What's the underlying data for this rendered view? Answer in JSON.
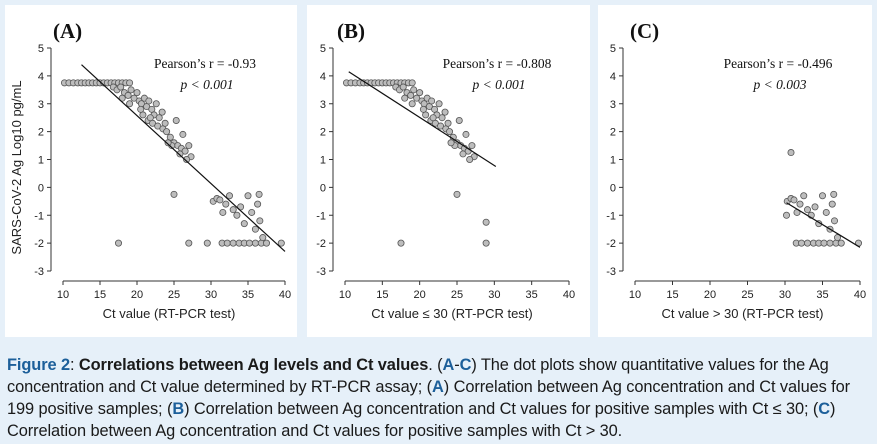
{
  "caption": {
    "figure_label": "Figure 2",
    "title": "Correlations between Ag levels and Ct values",
    "text_1": ". (",
    "range_a": "A",
    "range_dash": "-",
    "range_c": "C",
    "text_2": ") The dot plots show quantitative values for the Ag concentration and Ct value determined by RT-PCR assay; (",
    "label_a": "A",
    "text_3": ") Correlation between Ag concentration and Ct values for 199 positive samples; (",
    "label_b": "B",
    "text_4": ") Correlation between Ag concentration and Ct values for positive samples with Ct ≤ 30; (",
    "label_c": "C",
    "text_5": ") Correlation between Ag concentration and Ct values for positive samples with Ct > 30."
  },
  "chart_data": [
    {
      "type": "scatter",
      "panel_label": "(A)",
      "xlabel": "Ct value (RT-PCR test)",
      "ylabel": "SARS-CoV-2 Ag Log10 pg/mL",
      "xlim": [
        10,
        40
      ],
      "ylim": [
        -3,
        5
      ],
      "xticks": [
        10,
        15,
        20,
        25,
        30,
        35,
        40
      ],
      "yticks": [
        -3,
        -2,
        -1,
        0,
        1,
        2,
        3,
        4,
        5
      ],
      "stat_line1": "Pearson’s r = -0.93",
      "stat_line2": "p < 0.001",
      "trend": {
        "x": [
          12.5,
          40
        ],
        "y": [
          4.4,
          -2.3
        ]
      },
      "points": [
        [
          10.2,
          3.75
        ],
        [
          10.8,
          3.75
        ],
        [
          11.4,
          3.75
        ],
        [
          12.0,
          3.75
        ],
        [
          12.5,
          3.75
        ],
        [
          13.0,
          3.75
        ],
        [
          13.5,
          3.75
        ],
        [
          14.0,
          3.75
        ],
        [
          14.5,
          3.75
        ],
        [
          15.0,
          3.75
        ],
        [
          15.5,
          3.75
        ],
        [
          16.0,
          3.75
        ],
        [
          16.5,
          3.75
        ],
        [
          17.0,
          3.75
        ],
        [
          17.5,
          3.75
        ],
        [
          18.0,
          3.75
        ],
        [
          18.5,
          3.75
        ],
        [
          19.0,
          3.75
        ],
        [
          16.8,
          3.6
        ],
        [
          17.3,
          3.5
        ],
        [
          17.8,
          3.6
        ],
        [
          18.3,
          3.4
        ],
        [
          18.8,
          3.3
        ],
        [
          19.2,
          3.5
        ],
        [
          19.6,
          3.2
        ],
        [
          20.0,
          3.4
        ],
        [
          20.3,
          3.1
        ],
        [
          20.6,
          3.0
        ],
        [
          21.0,
          3.2
        ],
        [
          21.3,
          2.9
        ],
        [
          21.6,
          3.1
        ],
        [
          22.0,
          2.8
        ],
        [
          22.3,
          2.6
        ],
        [
          22.6,
          3.0
        ],
        [
          23.0,
          2.5
        ],
        [
          23.4,
          2.7
        ],
        [
          20.8,
          2.6
        ],
        [
          21.5,
          2.4
        ],
        [
          22.1,
          2.3
        ],
        [
          22.8,
          2.2
        ],
        [
          23.5,
          2.1
        ],
        [
          24.0,
          2.0
        ],
        [
          24.5,
          1.8
        ],
        [
          25.0,
          1.6
        ],
        [
          25.5,
          1.5
        ],
        [
          26.0,
          1.4
        ],
        [
          26.5,
          1.3
        ],
        [
          27.0,
          1.5
        ],
        [
          25.3,
          2.4
        ],
        [
          26.2,
          1.9
        ],
        [
          27.3,
          1.1
        ],
        [
          18.0,
          3.2
        ],
        [
          19.0,
          3.0
        ],
        [
          20.5,
          2.8
        ],
        [
          21.8,
          2.5
        ],
        [
          23.8,
          2.3
        ],
        [
          24.7,
          1.5
        ],
        [
          26.7,
          1.0
        ],
        [
          24.2,
          1.6
        ],
        [
          25.8,
          1.2
        ],
        [
          17.5,
          -2.0
        ],
        [
          25.0,
          -0.25
        ],
        [
          27.0,
          -2.0
        ],
        [
          29.5,
          -2.0
        ],
        [
          30.3,
          -0.5
        ],
        [
          30.8,
          -0.4
        ],
        [
          31.2,
          -0.45
        ],
        [
          31.6,
          -0.9
        ],
        [
          32.0,
          -0.6
        ],
        [
          32.5,
          -0.3
        ],
        [
          33.0,
          -0.8
        ],
        [
          33.5,
          -1.0
        ],
        [
          34.0,
          -0.7
        ],
        [
          34.5,
          -1.3
        ],
        [
          35.0,
          -0.3
        ],
        [
          35.5,
          -0.9
        ],
        [
          36.0,
          -1.5
        ],
        [
          36.3,
          -0.6
        ],
        [
          36.6,
          -1.2
        ],
        [
          31.5,
          -2.0
        ],
        [
          32.2,
          -2.0
        ],
        [
          33.0,
          -2.0
        ],
        [
          33.8,
          -2.0
        ],
        [
          34.5,
          -2.0
        ],
        [
          35.2,
          -2.0
        ],
        [
          36.0,
          -2.0
        ],
        [
          36.8,
          -2.0
        ],
        [
          37.5,
          -2.0
        ],
        [
          39.5,
          -2.0
        ],
        [
          36.5,
          -0.25
        ],
        [
          37.0,
          -1.8
        ]
      ]
    },
    {
      "type": "scatter",
      "panel_label": "(B)",
      "xlabel": "Ct value ≤ 30 (RT-PCR test)",
      "ylabel": "",
      "xlim": [
        10,
        40
      ],
      "ylim": [
        -3,
        5
      ],
      "xticks": [
        10,
        15,
        20,
        25,
        30,
        35,
        40
      ],
      "yticks": [
        -3,
        -2,
        -1,
        0,
        1,
        2,
        3,
        4,
        5
      ],
      "stat_line1": "Pearson’s r = -0.808",
      "stat_line2": "p < 0.001",
      "trend": {
        "x": [
          10.5,
          30.2
        ],
        "y": [
          4.15,
          0.75
        ]
      },
      "points": [
        [
          10.2,
          3.75
        ],
        [
          10.8,
          3.75
        ],
        [
          11.4,
          3.75
        ],
        [
          12.0,
          3.75
        ],
        [
          12.5,
          3.75
        ],
        [
          13.0,
          3.75
        ],
        [
          13.5,
          3.75
        ],
        [
          14.0,
          3.75
        ],
        [
          14.5,
          3.75
        ],
        [
          15.0,
          3.75
        ],
        [
          15.5,
          3.75
        ],
        [
          16.0,
          3.75
        ],
        [
          16.5,
          3.75
        ],
        [
          17.0,
          3.75
        ],
        [
          17.5,
          3.75
        ],
        [
          18.0,
          3.75
        ],
        [
          18.5,
          3.75
        ],
        [
          19.0,
          3.75
        ],
        [
          16.8,
          3.6
        ],
        [
          17.3,
          3.5
        ],
        [
          17.8,
          3.6
        ],
        [
          18.3,
          3.4
        ],
        [
          18.8,
          3.3
        ],
        [
          19.2,
          3.5
        ],
        [
          19.6,
          3.2
        ],
        [
          20.0,
          3.4
        ],
        [
          20.3,
          3.1
        ],
        [
          20.6,
          3.0
        ],
        [
          21.0,
          3.2
        ],
        [
          21.3,
          2.9
        ],
        [
          21.6,
          3.1
        ],
        [
          22.0,
          2.8
        ],
        [
          22.3,
          2.6
        ],
        [
          22.6,
          3.0
        ],
        [
          23.0,
          2.5
        ],
        [
          23.4,
          2.7
        ],
        [
          20.8,
          2.6
        ],
        [
          21.5,
          2.4
        ],
        [
          22.1,
          2.3
        ],
        [
          22.8,
          2.2
        ],
        [
          23.5,
          2.1
        ],
        [
          24.0,
          2.0
        ],
        [
          24.5,
          1.8
        ],
        [
          25.0,
          1.6
        ],
        [
          25.5,
          1.5
        ],
        [
          26.0,
          1.4
        ],
        [
          26.5,
          1.3
        ],
        [
          27.0,
          1.5
        ],
        [
          25.3,
          2.4
        ],
        [
          26.2,
          1.9
        ],
        [
          27.3,
          1.1
        ],
        [
          18.0,
          3.2
        ],
        [
          19.0,
          3.0
        ],
        [
          20.5,
          2.8
        ],
        [
          21.8,
          2.5
        ],
        [
          23.8,
          2.3
        ],
        [
          24.7,
          1.5
        ],
        [
          26.7,
          1.0
        ],
        [
          24.2,
          1.6
        ],
        [
          25.8,
          1.2
        ],
        [
          17.5,
          -2.0
        ],
        [
          25.0,
          -0.25
        ],
        [
          28.9,
          -1.25
        ],
        [
          28.9,
          -2.0
        ]
      ]
    },
    {
      "type": "scatter",
      "panel_label": "(C)",
      "xlabel": "Ct value > 30 (RT-PCR test)",
      "ylabel": "",
      "xlim": [
        10,
        40
      ],
      "ylim": [
        -3,
        5
      ],
      "xticks": [
        10,
        15,
        20,
        25,
        30,
        35,
        40
      ],
      "yticks": [
        -3,
        -2,
        -1,
        0,
        1,
        2,
        3,
        4,
        5
      ],
      "stat_line1": "Pearson’s r = -0.496",
      "stat_line2": "p < 0.003",
      "trend": {
        "x": [
          30.2,
          40
        ],
        "y": [
          -0.55,
          -2.15
        ]
      },
      "points": [
        [
          30.8,
          1.25
        ],
        [
          30.3,
          -0.5
        ],
        [
          30.8,
          -0.4
        ],
        [
          31.2,
          -0.45
        ],
        [
          31.6,
          -0.9
        ],
        [
          32.0,
          -0.6
        ],
        [
          32.5,
          -0.3
        ],
        [
          33.0,
          -0.8
        ],
        [
          33.5,
          -1.0
        ],
        [
          34.0,
          -0.7
        ],
        [
          34.5,
          -1.3
        ],
        [
          35.0,
          -0.3
        ],
        [
          35.5,
          -0.9
        ],
        [
          36.0,
          -1.5
        ],
        [
          36.3,
          -0.6
        ],
        [
          36.6,
          -1.2
        ],
        [
          30.2,
          -1.0
        ],
        [
          31.5,
          -2.0
        ],
        [
          32.2,
          -2.0
        ],
        [
          33.0,
          -2.0
        ],
        [
          33.8,
          -2.0
        ],
        [
          34.5,
          -2.0
        ],
        [
          35.2,
          -2.0
        ],
        [
          36.0,
          -2.0
        ],
        [
          36.8,
          -2.0
        ],
        [
          37.5,
          -2.0
        ],
        [
          39.8,
          -2.0
        ],
        [
          36.5,
          -0.25
        ],
        [
          37.0,
          -1.8
        ]
      ]
    }
  ]
}
